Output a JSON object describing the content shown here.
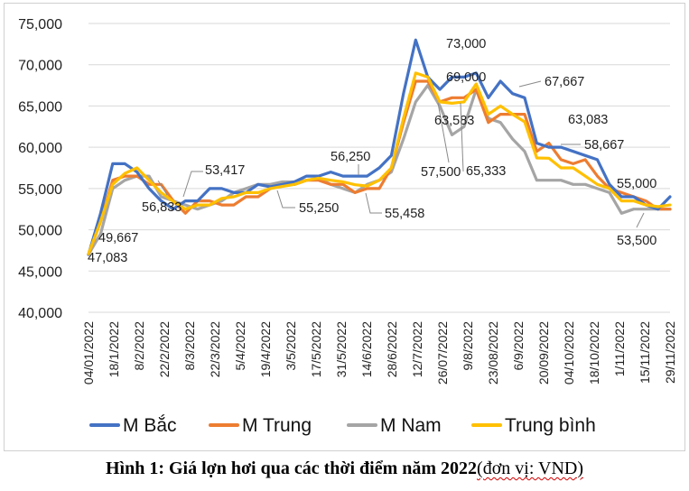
{
  "chart_data": {
    "type": "line",
    "ylim": [
      40000,
      75000
    ],
    "yticks": [
      "40,000",
      "45,000",
      "50,000",
      "55,000",
      "60,000",
      "65,000",
      "70,000",
      "75,000"
    ],
    "grid": "horizontal",
    "legend_placement": "bottom",
    "tick_labels": [
      "04/01/2022",
      "18/1/2022",
      "8/2/2022",
      "22/2/2022",
      "8/3/2022",
      "22/3/2022",
      "5/4/2022",
      "19/4/2022",
      "3/5/2022",
      "17/5/2022",
      "31/5/2022",
      "14/6/2022",
      "28/6/2022",
      "12/7/2022",
      "26/07/2022",
      "9/8/2022",
      "23/08/2022",
      "6/9/2022",
      "20/09/2022",
      "04/10/2022",
      "18/10/2022",
      "1/11/2022",
      "15/11/2022",
      "29/11/2022"
    ],
    "series": [
      {
        "name": "M Bắc",
        "color": "#4472C4",
        "values": [
          47000,
          52000,
          58000,
          58000,
          57000,
          55000,
          53500,
          52500,
          53500,
          53500,
          55000,
          55000,
          54500,
          54500,
          55500,
          55200,
          55500,
          55800,
          56500,
          56500,
          57000,
          56500,
          56500,
          56500,
          57500,
          59000,
          66500,
          73000,
          68500,
          67000,
          68500,
          68500,
          69000,
          66000,
          68000,
          66500,
          66000,
          60500,
          60000,
          60000,
          59500,
          59000,
          58500,
          55500,
          54000,
          54000,
          53000,
          52500,
          54000
        ]
      },
      {
        "name": "M Trung",
        "color": "#ED7D31",
        "values": [
          47000,
          51000,
          56000,
          56500,
          56500,
          55500,
          55500,
          53500,
          52000,
          53500,
          53500,
          53000,
          53000,
          54000,
          54000,
          55000,
          55500,
          55500,
          56000,
          56000,
          55500,
          55500,
          54500,
          55000,
          55000,
          57500,
          63000,
          68000,
          68000,
          65500,
          66000,
          66000,
          67000,
          63000,
          64000,
          64000,
          64000,
          59500,
          60500,
          58500,
          58000,
          58500,
          56500,
          55000,
          54500,
          54000,
          53500,
          52500,
          52500
        ]
      },
      {
        "name": "M Nam",
        "color": "#A5A5A5",
        "values": [
          47000,
          49500,
          55000,
          56000,
          56500,
          56500,
          54000,
          53500,
          53000,
          52500,
          53000,
          53500,
          54500,
          55000,
          55500,
          55500,
          55800,
          55800,
          56000,
          56250,
          55500,
          55000,
          54500,
          55500,
          56000,
          57000,
          61000,
          65500,
          67500,
          65000,
          61500,
          62500,
          67000,
          63500,
          63000,
          61000,
          59500,
          56000,
          56000,
          56000,
          55500,
          55500,
          55000,
          54500,
          52000,
          52500,
          52500,
          52500,
          52500
        ]
      },
      {
        "name": "Trung bình",
        "color": "#FFC000",
        "values": [
          47083,
          51000,
          55500,
          56833,
          57500,
          56000,
          54500,
          53417,
          52500,
          53000,
          53000,
          53800,
          54000,
          54500,
          54500,
          55000,
          55250,
          55500,
          56000,
          56250,
          56000,
          55800,
          55458,
          55300,
          56000,
          57500,
          63500,
          69000,
          68500,
          65500,
          65333,
          65500,
          67667,
          64000,
          65000,
          64000,
          63083,
          58700,
          58667,
          57500,
          57500,
          56500,
          55500,
          55000,
          53500,
          53500,
          53000,
          52800,
          53000
        ]
      }
    ],
    "data_labels": [
      "47,083",
      "49,667",
      "56,833",
      "53,417",
      "55,250",
      "56,250",
      "55,458",
      "57,500",
      "63,583",
      "73,000",
      "69,000",
      "65,333",
      "67,667",
      "63,083",
      "58,667",
      "55,000",
      "53,500"
    ],
    "caption_bold": "Hình 1: Giá lợn hơi qua các thời điểm năm 2022",
    "caption_unit": "(đơn vị: VND)"
  }
}
